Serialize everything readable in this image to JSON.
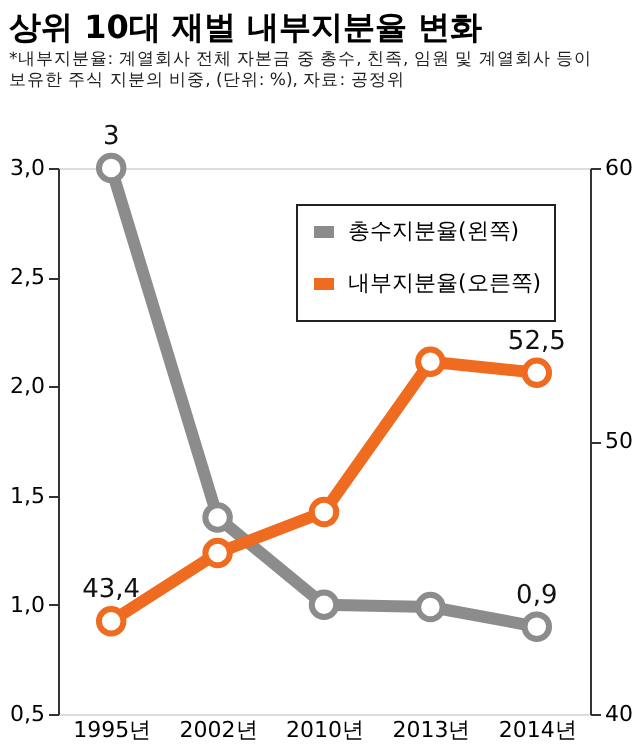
{
  "chart_data": {
    "type": "line",
    "title": "상위 10대 재벌 내부지분율 변화",
    "subtitle": [
      "*내부지분율: 계열회사 전체 자본금 중 총수, 친족, 임원 및 계열회사 등이",
      "보유한 주식 지분의 비중, (단위: %), 자료: 공정위"
    ],
    "categories": [
      "1995년",
      "2002년",
      "2010년",
      "2013년",
      "2014년"
    ],
    "series": [
      {
        "name": "총수지분율(왼쪽)",
        "color": "#8c8c8c",
        "values": [
          3,
          1.4,
          1.0,
          0.99,
          0.9
        ],
        "value_labels": [
          "3",
          null,
          null,
          null,
          "0,9"
        ]
      },
      {
        "name": "내부지분율(오른쪽)",
        "color": "#ee6b1f",
        "axis": "y2",
        "values": [
          43.4,
          45.9,
          47.4,
          52.9,
          52.5
        ],
        "value_labels": [
          "43,4",
          null,
          null,
          null,
          "52,5"
        ]
      }
    ],
    "ylim": [
      0.5,
      3.0
    ],
    "yticks": [
      {
        "value": 0.5,
        "label": "0,5"
      },
      {
        "value": 1.0,
        "label": "1,0"
      },
      {
        "value": 1.5,
        "label": "1,5"
      },
      {
        "value": 2.0,
        "label": "2,0"
      },
      {
        "value": 2.5,
        "label": "2,5"
      },
      {
        "value": 3.0,
        "label": "3,0"
      }
    ],
    "y2lim": [
      40,
      60
    ],
    "y2ticks": [
      40,
      50,
      60
    ],
    "grid": false,
    "legend": "top right",
    "marker": "circle",
    "line_style": "solid"
  }
}
